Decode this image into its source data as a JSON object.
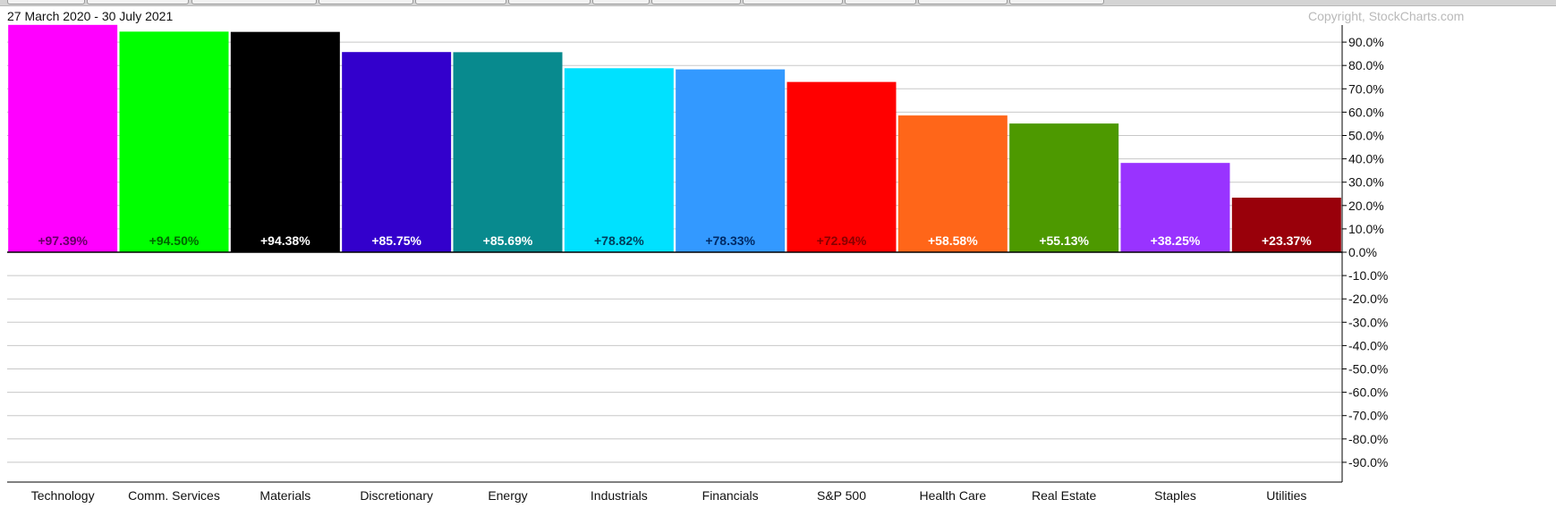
{
  "header": {
    "date_range": "27 March 2020 - 30 July 2021",
    "copyright": "Copyright, StockCharts.com"
  },
  "colors": {
    "background": "#ffffff",
    "grid": "#c8c8c8",
    "axis": "#000000",
    "tab_strip": "#d4d4d4"
  },
  "chart_data": {
    "type": "bar",
    "title": "",
    "xlabel": "",
    "ylabel": "",
    "ylim": [
      -100,
      100
    ],
    "y_axis_side": "right",
    "grid": true,
    "yticks": [
      90,
      80,
      70,
      60,
      50,
      40,
      30,
      20,
      10,
      0,
      -10,
      -20,
      -30,
      -40,
      -50,
      -60,
      -70,
      -80,
      -90
    ],
    "ytick_labels": [
      "90.0%",
      "80.0%",
      "70.0%",
      "60.0%",
      "50.0%",
      "40.0%",
      "30.0%",
      "20.0%",
      "10.0%",
      "0.0%",
      "-10.0%",
      "-20.0%",
      "-30.0%",
      "-40.0%",
      "-50.0%",
      "-60.0%",
      "-70.0%",
      "-80.0%",
      "-90.0%"
    ],
    "categories": [
      "Technology",
      "Comm. Services",
      "Materials",
      "Discretionary",
      "Energy",
      "Industrials",
      "Financials",
      "S&P 500",
      "Health Care",
      "Real Estate",
      "Staples",
      "Utilities"
    ],
    "values": [
      97.39,
      94.5,
      94.38,
      85.75,
      85.69,
      78.82,
      78.33,
      72.94,
      58.58,
      55.13,
      38.25,
      23.37
    ],
    "data_labels": [
      "+97.39%",
      "+94.50%",
      "+94.38%",
      "+85.75%",
      "+85.69%",
      "+78.82%",
      "+78.33%",
      "+72.94%",
      "+58.58%",
      "+55.13%",
      "+38.25%",
      "+23.37%"
    ],
    "bar_colors": [
      "#ff00ff",
      "#00ff00",
      "#000000",
      "#3300cc",
      "#088a8e",
      "#00e1ff",
      "#3399ff",
      "#ff0000",
      "#ff6619",
      "#4d9900",
      "#9933ff",
      "#99000a"
    ],
    "label_colors": [
      "#660066",
      "#006600",
      "#ffffff",
      "#ffffff",
      "#ffffff",
      "#003d5c",
      "#002a66",
      "#880000",
      "#ffffff",
      "#ffffff",
      "#ffffff",
      "#ffffff"
    ]
  }
}
